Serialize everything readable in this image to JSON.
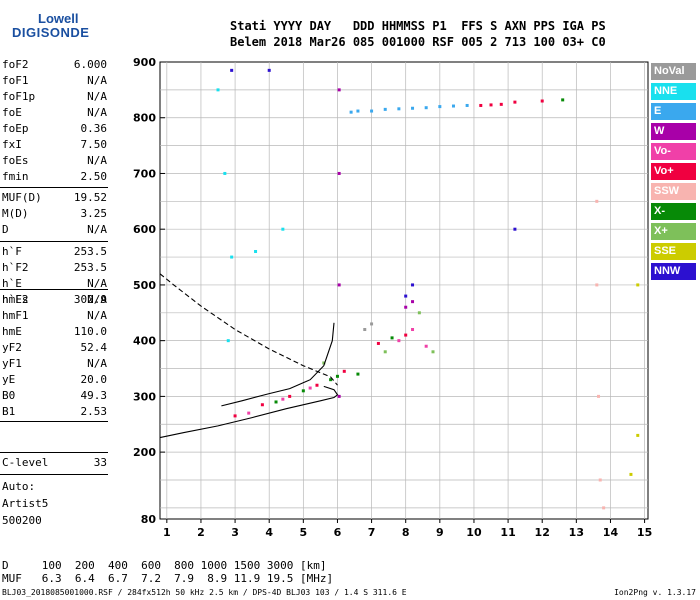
{
  "logo": {
    "line1": "Lowell",
    "line2": "DIGISONDE"
  },
  "header": {
    "row1": "Stati YYYY DAY   DDD HHMMSS P1  FFS S AXN PPS IGA PS",
    "row2": "Belem 2018 Mar26 085 001000 RSF 005 2 713 100 03+ C0"
  },
  "params": {
    "g1": [
      {
        "name": "foF2",
        "value": "6.000"
      },
      {
        "name": "foF1",
        "value": "N/A"
      },
      {
        "name": "foF1p",
        "value": "N/A"
      },
      {
        "name": "foE",
        "value": "N/A"
      },
      {
        "name": "foEp",
        "value": "0.36"
      },
      {
        "name": "fxI",
        "value": "7.50"
      },
      {
        "name": "foEs",
        "value": "N/A"
      },
      {
        "name": "fmin",
        "value": "2.50"
      }
    ],
    "g2": [
      {
        "name": "MUF(D)",
        "value": "19.52"
      },
      {
        "name": "M(D)",
        "value": "3.25"
      },
      {
        "name": "D",
        "value": "N/A"
      }
    ],
    "g3": [
      {
        "name": "h`F",
        "value": "253.5"
      },
      {
        "name": "h`F2",
        "value": "253.5"
      },
      {
        "name": "h`E",
        "value": "N/A"
      },
      {
        "name": "h`Es",
        "value": "N/A"
      }
    ],
    "g4": [
      {
        "name": "hmF2",
        "value": "302.9"
      },
      {
        "name": "hmF1",
        "value": "N/A"
      },
      {
        "name": "hmE",
        "value": "110.0"
      },
      {
        "name": "yF2",
        "value": "52.4"
      },
      {
        "name": "yF1",
        "value": "N/A"
      },
      {
        "name": "yE",
        "value": "20.0"
      },
      {
        "name": "B0",
        "value": "49.3"
      },
      {
        "name": "B1",
        "value": "2.53"
      }
    ],
    "g5": [
      {
        "name": "C-level",
        "value": "33"
      }
    ]
  },
  "auto": {
    "line1": "Auto:",
    "line2": "Artist5",
    "line3": "500200"
  },
  "legend": [
    {
      "label": "NoVal",
      "color": "#9a9a9a"
    },
    {
      "label": "NNE",
      "color": "#19e0ee"
    },
    {
      "label": "E",
      "color": "#3aa8ee"
    },
    {
      "label": "W",
      "color": "#a800a8"
    },
    {
      "label": "Vo-",
      "color": "#f040a8"
    },
    {
      "label": "Vo+",
      "color": "#f00040"
    },
    {
      "label": "SSW",
      "color": "#f8b4b0"
    },
    {
      "label": "X-",
      "color": "#078a07"
    },
    {
      "label": "X+",
      "color": "#7ec05a"
    },
    {
      "label": "SSE",
      "color": "#cccc00"
    },
    {
      "label": "NNW",
      "color": "#2c10d0"
    }
  ],
  "footer": {
    "d_row": "D     100  200  400  600  800 1000 1500 3000 [km]",
    "muf_row": "MUF   6.3  6.4  6.7  7.2  7.9  8.9 11.9 19.5 [MHz]",
    "status": "BLJ03_2018085001000.RSF / 284fx512h 50 kHz 2.5 km / DPS-4D BLJ03 103 / 1.4 S 311.6 E",
    "version": "Ion2Png v. 1.3.17"
  },
  "chart_data": {
    "type": "scatter",
    "title": "",
    "xlabel": "",
    "ylabel": "",
    "xlim": [
      0.8,
      15.1
    ],
    "ylim": [
      80,
      900
    ],
    "x_ticks": [
      "1",
      "2",
      "3",
      "4",
      "5",
      "6",
      "7",
      "8",
      "9",
      "10",
      "11",
      "12",
      "13",
      "14",
      "15"
    ],
    "y_ticks": [
      "80",
      "200",
      "300",
      "400",
      "500",
      "600",
      "700",
      "800",
      "900"
    ],
    "grid": true,
    "legend_position": "right",
    "series": [
      {
        "name": "E",
        "color": "#3aa8ee",
        "points": [
          [
            7.0,
            812
          ],
          [
            7.4,
            815
          ],
          [
            7.8,
            816
          ],
          [
            8.2,
            817
          ],
          [
            8.6,
            818
          ],
          [
            9.0,
            820
          ],
          [
            9.4,
            821
          ],
          [
            9.8,
            822
          ],
          [
            6.4,
            810
          ],
          [
            6.6,
            812
          ]
        ]
      },
      {
        "name": "Vo+",
        "color": "#f00040",
        "points": [
          [
            10.2,
            822
          ],
          [
            10.5,
            823
          ],
          [
            10.8,
            824
          ],
          [
            11.2,
            828
          ],
          [
            12.0,
            830
          ],
          [
            3.0,
            265
          ],
          [
            3.8,
            285
          ],
          [
            4.6,
            300
          ],
          [
            5.4,
            320
          ],
          [
            6.2,
            345
          ],
          [
            7.2,
            395
          ],
          [
            8.0,
            410
          ]
        ]
      },
      {
        "name": "X-",
        "color": "#078a07",
        "points": [
          [
            12.6,
            832
          ],
          [
            4.2,
            290
          ],
          [
            5.0,
            310
          ],
          [
            5.8,
            330
          ],
          [
            6.0,
            336
          ],
          [
            6.6,
            340
          ],
          [
            7.6,
            405
          ]
        ]
      },
      {
        "name": "Vo-",
        "color": "#f040a8",
        "points": [
          [
            3.4,
            270
          ],
          [
            4.4,
            295
          ],
          [
            5.2,
            315
          ],
          [
            7.8,
            400
          ],
          [
            8.2,
            420
          ],
          [
            8.6,
            390
          ]
        ]
      },
      {
        "name": "X+",
        "color": "#7ec05a",
        "points": [
          [
            5.6,
            360
          ],
          [
            7.4,
            380
          ],
          [
            8.4,
            450
          ],
          [
            8.8,
            380
          ]
        ]
      },
      {
        "name": "W",
        "color": "#a800a8",
        "points": [
          [
            6.05,
            850
          ],
          [
            6.05,
            700
          ],
          [
            6.05,
            500
          ],
          [
            6.05,
            300
          ],
          [
            8.0,
            460
          ],
          [
            8.2,
            470
          ]
        ]
      },
      {
        "name": "NNE",
        "color": "#19e0ee",
        "points": [
          [
            2.5,
            850
          ],
          [
            2.7,
            700
          ],
          [
            2.9,
            550
          ],
          [
            2.8,
            400
          ],
          [
            3.6,
            560
          ],
          [
            4.4,
            600
          ]
        ]
      },
      {
        "name": "NNW",
        "color": "#2c10d0",
        "points": [
          [
            2.9,
            885
          ],
          [
            4.0,
            885
          ],
          [
            8.0,
            480
          ],
          [
            8.2,
            500
          ],
          [
            11.2,
            600
          ]
        ]
      },
      {
        "name": "SSW",
        "color": "#f8b4b0",
        "points": [
          [
            13.6,
            650
          ],
          [
            13.6,
            500
          ],
          [
            13.65,
            300
          ],
          [
            13.7,
            150
          ],
          [
            13.8,
            100
          ]
        ]
      },
      {
        "name": "SSE",
        "color": "#cccc00",
        "points": [
          [
            14.8,
            500
          ],
          [
            14.8,
            230
          ],
          [
            14.6,
            160
          ]
        ]
      },
      {
        "name": "NoVal",
        "color": "#9a9a9a",
        "points": [
          [
            6.8,
            420
          ],
          [
            7.0,
            430
          ]
        ]
      }
    ],
    "curves": [
      {
        "style": "solid",
        "points": [
          [
            0.8,
            226
          ],
          [
            1.5,
            235
          ],
          [
            2.5,
            247
          ],
          [
            3.5,
            262
          ],
          [
            4.5,
            278
          ],
          [
            5.5,
            292
          ],
          [
            5.9,
            298
          ],
          [
            6.0,
            302.9
          ],
          [
            5.9,
            312
          ],
          [
            5.6,
            318
          ]
        ]
      },
      {
        "style": "dashed",
        "points": [
          [
            0.8,
            520
          ],
          [
            1.2,
            500
          ],
          [
            2.0,
            462
          ],
          [
            3.0,
            420
          ],
          [
            4.0,
            385
          ],
          [
            5.0,
            355
          ],
          [
            5.8,
            335
          ],
          [
            6.0,
            320
          ]
        ]
      },
      {
        "style": "solid",
        "points": [
          [
            5.9,
            432
          ],
          [
            5.85,
            400
          ],
          [
            5.6,
            355
          ],
          [
            5.2,
            330
          ],
          [
            4.6,
            314
          ],
          [
            4.0,
            305
          ],
          [
            3.2,
            292
          ],
          [
            2.6,
            283
          ]
        ]
      }
    ]
  }
}
